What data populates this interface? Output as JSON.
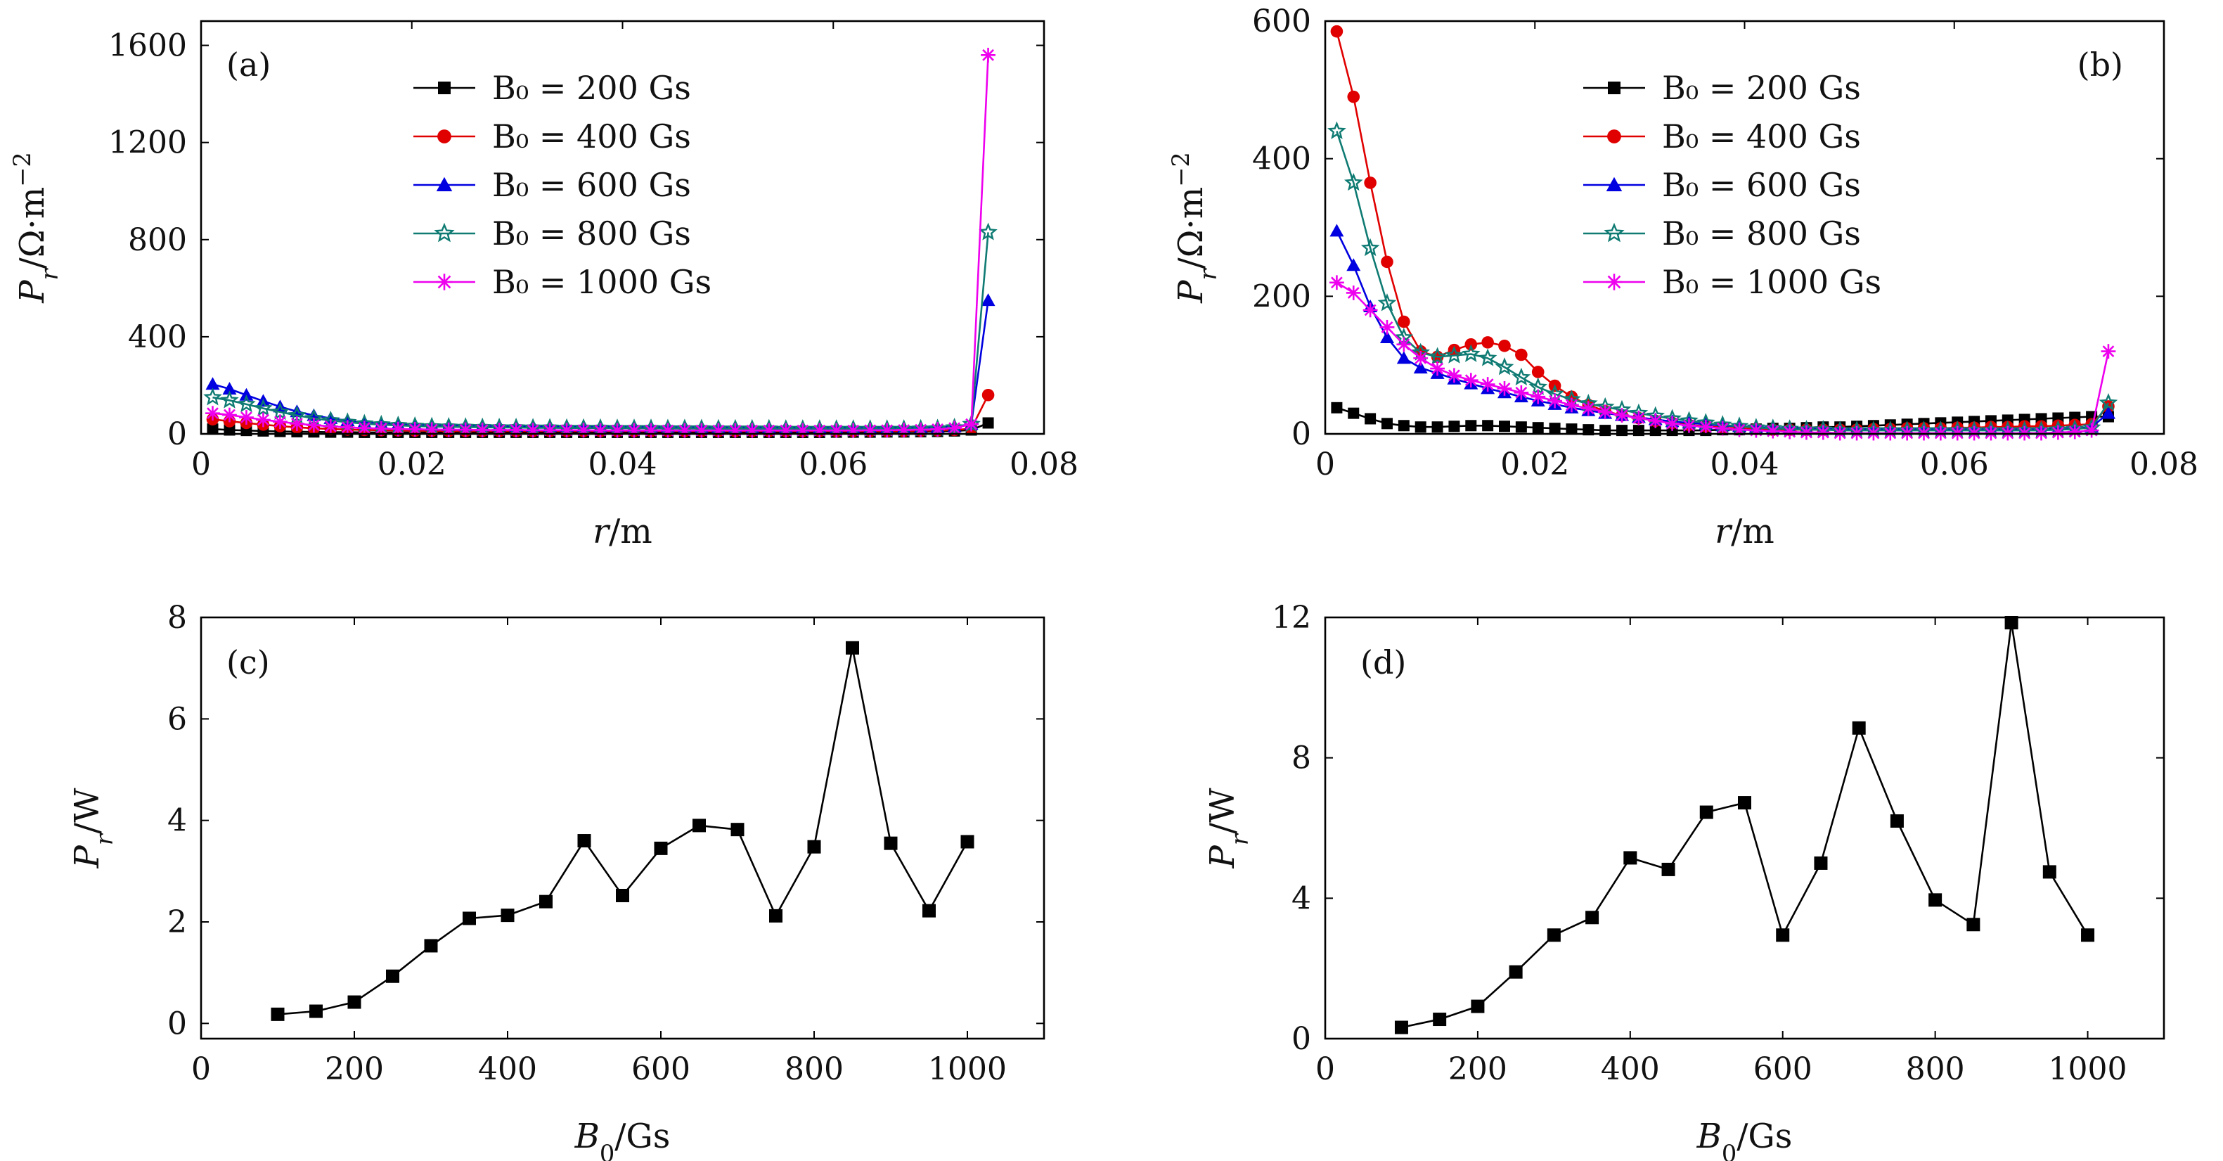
{
  "chart_data": [
    {
      "panel": "(a)",
      "type": "line",
      "xlabel": "r/m",
      "ylabel": "P_r/Ω·m^-2",
      "xlim": [
        0,
        0.08
      ],
      "ylim": [
        0,
        1700
      ],
      "xticks": [
        0,
        0.02,
        0.04,
        0.06,
        0.08
      ],
      "xtick_labels": [
        "0",
        "0.02",
        "0.04",
        "0.06",
        "0.08"
      ],
      "yticks": [
        0,
        400,
        800,
        1200,
        1600
      ],
      "ytick_labels": [
        "0",
        "400",
        "800",
        "1200",
        "1600"
      ],
      "legend_position": "top",
      "x": [
        0.0011,
        0.0027,
        0.0043,
        0.0059,
        0.0075,
        0.0091,
        0.0107,
        0.0123,
        0.0139,
        0.0155,
        0.0171,
        0.0187,
        0.0203,
        0.0219,
        0.0235,
        0.0251,
        0.0267,
        0.0283,
        0.0299,
        0.0315,
        0.0331,
        0.0347,
        0.0363,
        0.0379,
        0.0395,
        0.0411,
        0.0427,
        0.0443,
        0.0459,
        0.0475,
        0.0491,
        0.0507,
        0.0523,
        0.0539,
        0.0555,
        0.0571,
        0.0587,
        0.0603,
        0.0619,
        0.0635,
        0.0651,
        0.0667,
        0.0683,
        0.0699,
        0.0715,
        0.0731,
        0.0747
      ],
      "series": [
        {
          "name": "B₀ = 200 Gs",
          "marker": "square",
          "color": "#000000",
          "values": [
            20,
            16,
            14,
            12,
            10,
            9,
            8,
            7,
            7,
            6,
            6,
            6,
            6,
            6,
            6,
            6,
            6,
            6,
            6,
            6,
            6,
            6,
            6,
            6,
            6,
            6,
            6,
            6,
            6,
            6,
            6,
            6,
            6,
            6,
            6,
            6,
            6,
            7,
            7,
            7,
            8,
            8,
            9,
            10,
            12,
            16,
            45
          ]
        },
        {
          "name": "B₀ = 400 Gs",
          "marker": "circle",
          "color": "#e00000",
          "values": [
            60,
            52,
            45,
            38,
            32,
            27,
            23,
            20,
            18,
            16,
            15,
            14,
            13,
            13,
            12,
            12,
            12,
            12,
            12,
            12,
            12,
            12,
            12,
            12,
            12,
            12,
            12,
            12,
            12,
            12,
            12,
            12,
            12,
            12,
            12,
            12,
            12,
            12,
            12,
            12,
            12,
            12,
            13,
            14,
            16,
            22,
            160
          ]
        },
        {
          "name": "B₀ = 600 Gs",
          "marker": "triangle",
          "color": "#0000e0",
          "values": [
            205,
            185,
            160,
            135,
            112,
            92,
            76,
            64,
            55,
            48,
            43,
            40,
            38,
            36,
            35,
            34,
            33,
            33,
            32,
            32,
            31,
            31,
            31,
            30,
            30,
            30,
            29,
            29,
            29,
            28,
            28,
            28,
            27,
            27,
            27,
            26,
            26,
            26,
            25,
            25,
            25,
            25,
            26,
            27,
            30,
            40,
            550
          ]
        },
        {
          "name": "B₀ = 800 Gs",
          "marker": "star",
          "color": "#0f7b73",
          "values": [
            150,
            138,
            122,
            105,
            90,
            76,
            64,
            55,
            48,
            42,
            38,
            35,
            32,
            30,
            29,
            28,
            27,
            26,
            26,
            25,
            25,
            24,
            24,
            24,
            23,
            23,
            23,
            22,
            22,
            22,
            21,
            21,
            21,
            21,
            20,
            20,
            20,
            20,
            20,
            20,
            20,
            20,
            21,
            22,
            26,
            40,
            830
          ]
        },
        {
          "name": "B₀ = 1000 Gs",
          "marker": "asterisk",
          "color": "#ee00ee",
          "values": [
            85,
            78,
            68,
            58,
            50,
            42,
            36,
            31,
            27,
            24,
            22,
            20,
            19,
            18,
            17,
            17,
            16,
            16,
            16,
            15,
            15,
            15,
            15,
            14,
            14,
            14,
            14,
            14,
            14,
            14,
            14,
            14,
            14,
            14,
            14,
            14,
            14,
            14,
            14,
            15,
            15,
            16,
            17,
            19,
            24,
            40,
            1560
          ]
        }
      ]
    },
    {
      "panel": "(b)",
      "type": "line",
      "xlabel": "r/m",
      "ylabel": "P_r/Ω·m^-2",
      "xlim": [
        0,
        0.08
      ],
      "ylim": [
        0,
        600
      ],
      "xticks": [
        0,
        0.02,
        0.04,
        0.06,
        0.08
      ],
      "xtick_labels": [
        "0",
        "0.02",
        "0.04",
        "0.06",
        "0.08"
      ],
      "yticks": [
        0,
        200,
        400,
        600
      ],
      "ytick_labels": [
        "0",
        "200",
        "400",
        "600"
      ],
      "legend_position": "top-center",
      "x": [
        0.0011,
        0.0027,
        0.0043,
        0.0059,
        0.0075,
        0.0091,
        0.0107,
        0.0123,
        0.0139,
        0.0155,
        0.0171,
        0.0187,
        0.0203,
        0.0219,
        0.0235,
        0.0251,
        0.0267,
        0.0283,
        0.0299,
        0.0315,
        0.0331,
        0.0347,
        0.0363,
        0.0379,
        0.0395,
        0.0411,
        0.0427,
        0.0443,
        0.0459,
        0.0475,
        0.0491,
        0.0507,
        0.0523,
        0.0539,
        0.0555,
        0.0571,
        0.0587,
        0.0603,
        0.0619,
        0.0635,
        0.0651,
        0.0667,
        0.0683,
        0.0699,
        0.0715,
        0.0731,
        0.0747
      ],
      "series": [
        {
          "name": "B₀ = 200 Gs",
          "marker": "square",
          "color": "#000000",
          "values": [
            38,
            30,
            22,
            15,
            12,
            10,
            10,
            11,
            12,
            12,
            11,
            10,
            9,
            8,
            7,
            6,
            5,
            5,
            5,
            5,
            5,
            5,
            5,
            6,
            6,
            7,
            8,
            8,
            9,
            10,
            10,
            11,
            12,
            13,
            14,
            15,
            16,
            17,
            18,
            19,
            20,
            21,
            22,
            23,
            24,
            25,
            25
          ]
        },
        {
          "name": "B₀ = 400 Gs",
          "marker": "circle",
          "color": "#e00000",
          "values": [
            585,
            490,
            365,
            250,
            163,
            120,
            112,
            122,
            130,
            133,
            128,
            115,
            90,
            70,
            54,
            42,
            33,
            27,
            23,
            19,
            16,
            13,
            11,
            9,
            8,
            7,
            6,
            6,
            6,
            6,
            6,
            6,
            7,
            7,
            8,
            8,
            8,
            9,
            9,
            10,
            10,
            11,
            11,
            12,
            13,
            14,
            40
          ]
        },
        {
          "name": "B₀ = 600 Gs",
          "marker": "triangle",
          "color": "#0000e0",
          "values": [
            295,
            245,
            185,
            140,
            110,
            96,
            88,
            80,
            73,
            66,
            60,
            54,
            48,
            43,
            38,
            34,
            30,
            27,
            24,
            21,
            18,
            16,
            14,
            12,
            11,
            10,
            9,
            8,
            8,
            7,
            7,
            7,
            7,
            7,
            7,
            7,
            7,
            7,
            7,
            7,
            7,
            7,
            7,
            8,
            8,
            10,
            30
          ]
        },
        {
          "name": "B₀ = 800 Gs",
          "marker": "star",
          "color": "#0f7b73",
          "values": [
            440,
            365,
            270,
            190,
            140,
            118,
            112,
            114,
            116,
            110,
            97,
            82,
            68,
            58,
            50,
            44,
            39,
            35,
            30,
            26,
            22,
            19,
            16,
            13,
            11,
            9,
            8,
            7,
            6,
            6,
            5,
            5,
            5,
            5,
            5,
            5,
            5,
            5,
            5,
            5,
            5,
            5,
            5,
            6,
            7,
            9,
            45
          ]
        },
        {
          "name": "B₀ = 1000 Gs",
          "marker": "asterisk",
          "color": "#ee00ee",
          "values": [
            220,
            205,
            180,
            155,
            130,
            110,
            95,
            85,
            78,
            72,
            66,
            60,
            54,
            48,
            42,
            37,
            32,
            27,
            23,
            19,
            15,
            12,
            10,
            8,
            6,
            5,
            4,
            3,
            2,
            2,
            1,
            1,
            1,
            1,
            1,
            1,
            1,
            1,
            1,
            1,
            1,
            1,
            1,
            2,
            3,
            5,
            120
          ]
        }
      ]
    },
    {
      "panel": "(c)",
      "type": "line",
      "xlabel": "B₀/Gs",
      "ylabel": "P_r/W",
      "xlim": [
        0,
        1100
      ],
      "ylim": [
        -0.3,
        8
      ],
      "xticks": [
        0,
        200,
        400,
        600,
        800,
        1000
      ],
      "xtick_labels": [
        "0",
        "200",
        "400",
        "600",
        "800",
        "1000"
      ],
      "yticks": [
        0,
        2,
        4,
        6,
        8
      ],
      "ytick_labels": [
        "0",
        "2",
        "4",
        "6",
        "8"
      ],
      "series": [
        {
          "marker": "square",
          "color": "#000000",
          "x": [
            100,
            150,
            200,
            250,
            300,
            350,
            400,
            450,
            500,
            550,
            600,
            650,
            700,
            750,
            800,
            850,
            900,
            950,
            1000
          ],
          "values": [
            0.18,
            0.24,
            0.42,
            0.93,
            1.53,
            2.07,
            2.13,
            2.4,
            3.6,
            2.52,
            3.45,
            3.9,
            3.82,
            2.12,
            3.48,
            7.4,
            3.55,
            2.22,
            3.58
          ]
        }
      ]
    },
    {
      "panel": "(d)",
      "type": "line",
      "xlabel": "B₀/Gs",
      "ylabel": "P_r/W",
      "xlim": [
        0,
        1100
      ],
      "ylim": [
        0,
        12
      ],
      "xticks": [
        0,
        200,
        400,
        600,
        800,
        1000
      ],
      "xtick_labels": [
        "0",
        "200",
        "400",
        "600",
        "800",
        "1000"
      ],
      "yticks": [
        0,
        4,
        8,
        12
      ],
      "ytick_labels": [
        "0",
        "4",
        "8",
        "12"
      ],
      "series": [
        {
          "marker": "square",
          "color": "#000000",
          "x": [
            100,
            150,
            200,
            250,
            300,
            350,
            400,
            450,
            500,
            550,
            600,
            650,
            700,
            750,
            800,
            850,
            900,
            950,
            1000
          ],
          "values": [
            0.32,
            0.55,
            0.92,
            1.9,
            2.95,
            3.45,
            5.15,
            4.82,
            6.45,
            6.72,
            2.95,
            5.0,
            8.85,
            6.2,
            3.95,
            3.25,
            11.85,
            4.75,
            2.95
          ]
        }
      ]
    }
  ]
}
